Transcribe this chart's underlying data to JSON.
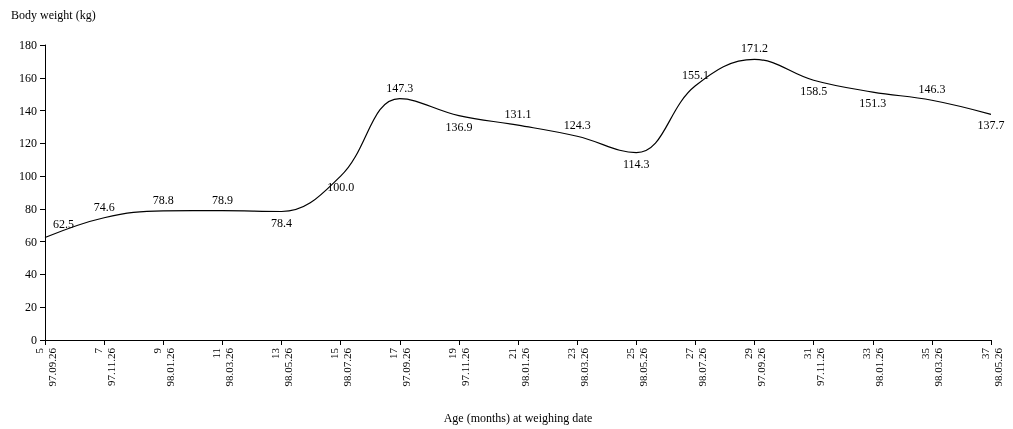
{
  "chart_data": {
    "type": "line",
    "ylabel": "Body weight (kg)",
    "xlabel": "Age (months) at weighing date",
    "categories": [
      "5\n97.09.26",
      "7\n97.11.26",
      "9\n98.01.26",
      "11\n98.03.26",
      "13\n98.05.26",
      "15\n98.07.26",
      "17\n97.09.26",
      "19\n97.11.26",
      "21\n98.01.26",
      "23\n98.03.26",
      "25\n98.05.26",
      "27\n98.07.26",
      "29\n97.09.26",
      "31\n97.11.26",
      "33\n98.01.26",
      "35\n98.03.26",
      "37\n98.05.26"
    ],
    "series": [
      {
        "color": "#000000",
        "values": [
          62.5,
          74.6,
          78.8,
          78.9,
          78.4,
          100.0,
          147.3,
          136.9,
          131.1,
          124.3,
          114.3,
          155.1,
          171.2,
          158.5,
          151.3,
          146.3,
          137.7
        ],
        "value_labels": [
          "62.5",
          "74.6",
          "78.8",
          "78.9",
          "78.4",
          "100.0",
          "147.3",
          "136.9",
          "131.1",
          "124.3",
          "114.3",
          "155.1",
          "171.2",
          "158.5",
          "151.3",
          "146.3",
          "137.7"
        ]
      }
    ],
    "ylim": [
      0,
      180
    ],
    "yticks": [
      0,
      20,
      40,
      60,
      80,
      100,
      120,
      140,
      160,
      180
    ],
    "grid": false,
    "marker": "none",
    "line_style": "solid"
  }
}
